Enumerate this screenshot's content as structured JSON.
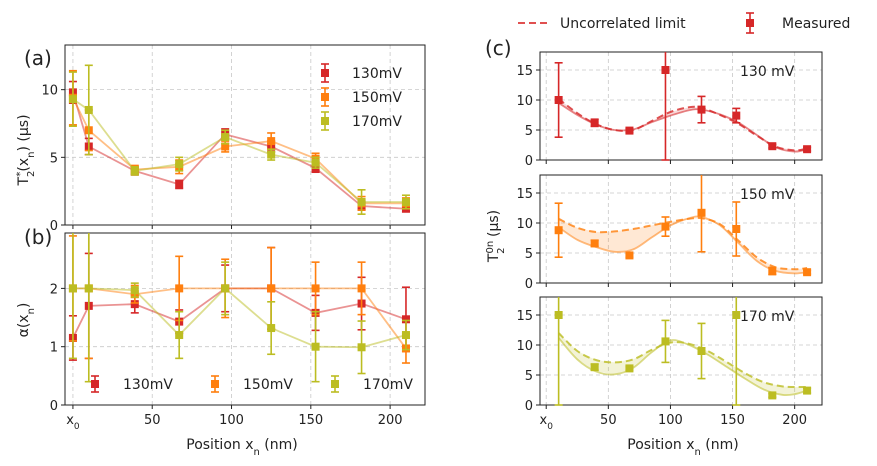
{
  "colors": {
    "c130": "#d62728",
    "c150": "#ff7f0e",
    "c170": "#bcbd22"
  },
  "top_legend": {
    "uncorrelated": "Uncorrelated limit",
    "measured": "Measured"
  },
  "chart_data": [
    {
      "id": "a",
      "type": "line",
      "panel_label": "(a)",
      "ylabel": "T₂*(xₙ) (μs)",
      "ylabel_base": "T",
      "ylabel_sub": "2",
      "ylabel_sup": "*",
      "ylabel_rest": "(x",
      "ylabel_rest_sub": "n",
      "ylabel_unit": ") (μs)",
      "xlim": [
        -5,
        222
      ],
      "ylim": [
        0,
        13.3
      ],
      "yticks": [
        0,
        5,
        10
      ],
      "x": [
        0,
        10,
        39,
        67,
        96,
        125,
        153,
        182,
        210
      ],
      "legend": [
        "130mV",
        "150mV",
        "170mV"
      ],
      "series": [
        {
          "name": "130mV",
          "color": "#d62728",
          "values": [
            9.8,
            5.8,
            4.0,
            3.0,
            6.7,
            5.8,
            4.2,
            1.4,
            1.2
          ],
          "errors": [
            0.8,
            0.6,
            0.3,
            0.3,
            0.4,
            0.4,
            0.3,
            0.3,
            0.2
          ]
        },
        {
          "name": "150mV",
          "color": "#ff7f0e",
          "values": [
            9.4,
            7.0,
            4.1,
            4.3,
            5.8,
            6.2,
            4.9,
            1.6,
            1.6
          ],
          "errors": [
            2.0,
            1.5,
            0.3,
            0.5,
            0.4,
            0.6,
            0.4,
            0.5,
            0.4
          ]
        },
        {
          "name": "170mV",
          "color": "#bcbd22",
          "values": [
            9.3,
            8.5,
            4.0,
            4.5,
            6.5,
            5.2,
            4.6,
            1.7,
            1.7
          ],
          "errors": [
            2.0,
            3.3,
            0.3,
            0.5,
            0.5,
            0.4,
            0.4,
            0.9,
            0.5
          ]
        }
      ]
    },
    {
      "id": "b",
      "type": "line",
      "panel_label": "(b)",
      "ylabel": "α(xₙ)",
      "ylabel_base": "α(x",
      "ylabel_sub": "n",
      "ylabel_unit": ")",
      "xlabel": "Position xₙ (nm)",
      "xlabel_base": "Position x",
      "xlabel_sub": "n",
      "xlabel_unit": " (nm)",
      "xlim": [
        -5,
        222
      ],
      "ylim": [
        0,
        2.95
      ],
      "yticks": [
        0,
        1,
        2
      ],
      "xticks": [
        0,
        50,
        100,
        150,
        200
      ],
      "xtick_labels": [
        "x₀",
        "50",
        "100",
        "150",
        "200"
      ],
      "x": [
        0,
        10,
        39,
        67,
        96,
        125,
        153,
        182,
        210
      ],
      "legend": [
        "130mV",
        "150mV",
        "170mV"
      ],
      "series": [
        {
          "name": "130mV",
          "color": "#d62728",
          "values": [
            1.15,
            1.7,
            1.73,
            1.43,
            2.0,
            2.0,
            1.58,
            1.74,
            1.47
          ],
          "errors": [
            0.38,
            0.9,
            0.15,
            0.2,
            0.4,
            0.7,
            0.3,
            0.45,
            0.55
          ]
        },
        {
          "name": "150mV",
          "color": "#ff7f0e",
          "values": [
            2.0,
            2.0,
            1.9,
            2.0,
            2.0,
            2.0,
            2.0,
            2.0,
            0.97
          ],
          "errors": [
            0.9,
            1.2,
            0.15,
            0.55,
            0.5,
            0.7,
            0.45,
            0.45,
            0.25
          ]
        },
        {
          "name": "170mV",
          "color": "#bcbd22",
          "values": [
            2.0,
            2.0,
            1.97,
            1.2,
            2.0,
            1.32,
            1.0,
            0.99,
            1.2
          ],
          "errors": [
            1.2,
            1.6,
            0.12,
            0.4,
            0.45,
            0.45,
            0.6,
            0.45,
            0.25
          ]
        }
      ]
    },
    {
      "id": "c",
      "type": "line",
      "panel_label": "(c)",
      "ylabel": "T₂⁰ⁿ (μs)",
      "ylabel_base": "T",
      "ylabel_sub": "2",
      "ylabel_sup": "0n",
      "ylabel_unit": " (μs)",
      "xlabel": "Position xₙ (nm)",
      "xlabel_base": "Position x",
      "xlabel_sub": "n",
      "xlabel_unit": " (nm)",
      "xlim": [
        -5,
        222
      ],
      "ylim": [
        0,
        18
      ],
      "yticks": [
        0,
        5,
        10,
        15
      ],
      "xticks": [
        0,
        50,
        100,
        150,
        200
      ],
      "xtick_labels": [
        "x₀",
        "50",
        "100",
        "150",
        "200"
      ],
      "subplots": [
        {
          "label": "130 mV",
          "color": "#d62728",
          "x": [
            10,
            39,
            67,
            96,
            125,
            153,
            182,
            210
          ],
          "values": [
            10.0,
            6.2,
            4.9,
            15.0,
            8.4,
            7.4,
            2.3,
            1.8
          ],
          "errors": [
            6.2,
            0.6,
            0.3,
            15.0,
            2.2,
            1.2,
            0.3,
            0.3
          ],
          "uncorrelated": [
            [
              10,
              10.2
            ],
            [
              25,
              7.8
            ],
            [
              40,
              6.0
            ],
            [
              55,
              5.0
            ],
            [
              70,
              5.0
            ],
            [
              85,
              6.5
            ],
            [
              100,
              8.0
            ],
            [
              115,
              8.8
            ],
            [
              125,
              8.7
            ],
            [
              140,
              7.5
            ],
            [
              155,
              6.0
            ],
            [
              170,
              4.0
            ],
            [
              185,
              2.2
            ],
            [
              200,
              1.6
            ],
            [
              210,
              1.9
            ]
          ],
          "smooth": [
            [
              10,
              9.5
            ],
            [
              25,
              7.5
            ],
            [
              40,
              5.9
            ],
            [
              55,
              5.0
            ],
            [
              70,
              5.1
            ],
            [
              85,
              6.3
            ],
            [
              100,
              7.4
            ],
            [
              115,
              8.3
            ],
            [
              125,
              8.4
            ],
            [
              140,
              7.6
            ],
            [
              155,
              6.2
            ],
            [
              170,
              4.1
            ],
            [
              185,
              2.1
            ],
            [
              200,
              1.4
            ],
            [
              210,
              1.8
            ]
          ]
        },
        {
          "label": "150 mV",
          "color": "#ff7f0e",
          "x": [
            10,
            39,
            67,
            96,
            125,
            153,
            182,
            210
          ],
          "values": [
            8.8,
            6.6,
            4.6,
            9.4,
            11.7,
            9.0,
            2.0,
            1.8
          ],
          "errors": [
            4.5,
            0.5,
            0.3,
            1.6,
            6.5,
            4.5,
            0.6,
            0.3
          ],
          "uncorrelated": [
            [
              10,
              10.7
            ],
            [
              25,
              9.2
            ],
            [
              40,
              8.5
            ],
            [
              55,
              8.6
            ],
            [
              70,
              9.0
            ],
            [
              85,
              9.6
            ],
            [
              100,
              10.2
            ],
            [
              115,
              10.7
            ],
            [
              125,
              10.8
            ],
            [
              140,
              9.8
            ],
            [
              155,
              7.0
            ],
            [
              170,
              4.2
            ],
            [
              185,
              2.6
            ],
            [
              200,
              2.3
            ],
            [
              210,
              2.5
            ]
          ],
          "smooth": [
            [
              10,
              9.3
            ],
            [
              25,
              7.2
            ],
            [
              40,
              6.0
            ],
            [
              55,
              5.2
            ],
            [
              70,
              5.6
            ],
            [
              85,
              7.6
            ],
            [
              100,
              9.6
            ],
            [
              115,
              10.8
            ],
            [
              125,
              11.0
            ],
            [
              140,
              9.6
            ],
            [
              155,
              6.6
            ],
            [
              170,
              3.6
            ],
            [
              185,
              2.0
            ],
            [
              200,
              1.6
            ],
            [
              210,
              1.8
            ]
          ]
        },
        {
          "label": "170 mV",
          "color": "#bcbd22",
          "x": [
            10,
            39,
            67,
            96,
            125,
            153,
            182,
            210
          ],
          "values": [
            15.0,
            6.3,
            6.1,
            10.6,
            9.0,
            15.0,
            1.6,
            2.4
          ],
          "errors": [
            15.0,
            0.5,
            0.3,
            3.5,
            4.6,
            15.0,
            0.3,
            0.4
          ],
          "uncorrelated": [
            [
              10,
              12.0
            ],
            [
              25,
              9.0
            ],
            [
              40,
              7.5
            ],
            [
              55,
              7.1
            ],
            [
              70,
              7.6
            ],
            [
              85,
              9.2
            ],
            [
              100,
              10.4
            ],
            [
              115,
              10.2
            ],
            [
              130,
              9.0
            ],
            [
              145,
              7.2
            ],
            [
              160,
              5.3
            ],
            [
              175,
              3.8
            ],
            [
              190,
              3.1
            ],
            [
              200,
              3.0
            ],
            [
              210,
              3.0
            ]
          ],
          "smooth": [
            [
              10,
              11.2
            ],
            [
              25,
              7.6
            ],
            [
              40,
              5.6
            ],
            [
              55,
              5.1
            ],
            [
              70,
              6.2
            ],
            [
              85,
              8.8
            ],
            [
              100,
              10.8
            ],
            [
              115,
              10.0
            ],
            [
              130,
              8.4
            ],
            [
              145,
              6.4
            ],
            [
              160,
              4.4
            ],
            [
              175,
              2.6
            ],
            [
              190,
              1.7
            ],
            [
              200,
              1.8
            ],
            [
              210,
              2.4
            ]
          ]
        }
      ]
    }
  ]
}
